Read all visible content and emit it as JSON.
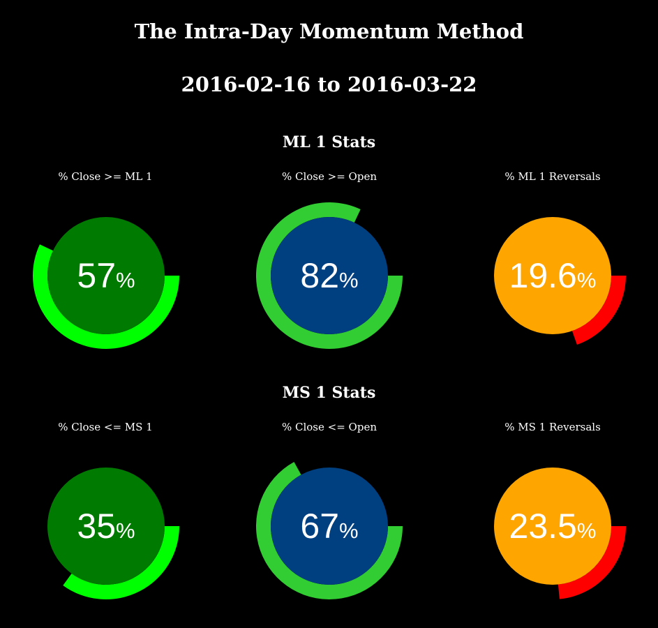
{
  "header": {
    "title": "The Intra-Day Momentum Method",
    "date_range": "2016-02-16 to 2016-03-22"
  },
  "sections": [
    {
      "title": "ML 1 Stats"
    },
    {
      "title": "MS 1 Stats"
    }
  ],
  "colors": {
    "background": "#000000",
    "inner_green": "#007a00",
    "inner_blue": "#003f80",
    "inner_orange": "#ffa500",
    "arc_lime": "#00ff00",
    "arc_green": "#32cd32",
    "arc_red": "#ff0000"
  },
  "chart_data": [
    {
      "type": "gauge",
      "title": "% Close >= ML 1",
      "value": 57,
      "display": "57",
      "unit": "%",
      "max": 100,
      "inner_color": "#007a00",
      "arc_color": "#00ff00"
    },
    {
      "type": "gauge",
      "title": "% Close >= Open",
      "value": 82,
      "display": "82",
      "unit": "%",
      "max": 100,
      "inner_color": "#003f80",
      "arc_color": "#32cd32"
    },
    {
      "type": "gauge",
      "title": "% ML 1 Reversals",
      "value": 19.6,
      "display": "19.6",
      "unit": "%",
      "max": 100,
      "inner_color": "#ffa500",
      "arc_color": "#ff0000"
    },
    {
      "type": "gauge",
      "title": "% Close <= MS 1",
      "value": 35,
      "display": "35",
      "unit": "%",
      "max": 100,
      "inner_color": "#007a00",
      "arc_color": "#00ff00"
    },
    {
      "type": "gauge",
      "title": "% Close <= Open",
      "value": 67,
      "display": "67",
      "unit": "%",
      "max": 100,
      "inner_color": "#003f80",
      "arc_color": "#32cd32"
    },
    {
      "type": "gauge",
      "title": "% MS 1 Reversals",
      "value": 23.5,
      "display": "23.5",
      "unit": "%",
      "max": 100,
      "inner_color": "#ffa500",
      "arc_color": "#ff0000"
    }
  ]
}
